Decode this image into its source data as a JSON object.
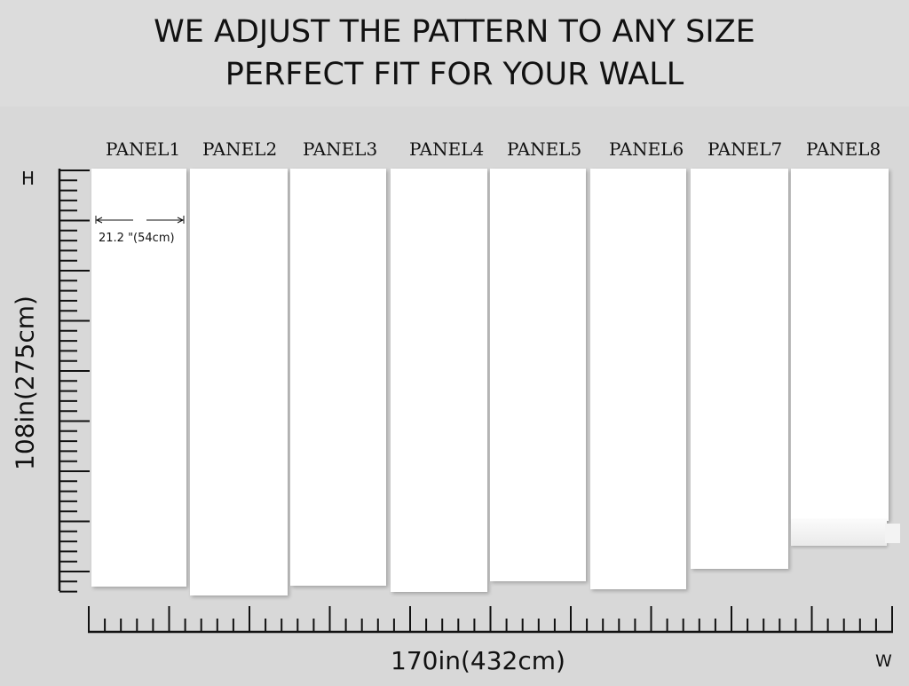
{
  "headline": {
    "line1": "WE ADJUST THE PATTERN TO ANY SIZE",
    "line2": "PERFECT FIT FOR YOUR WALL"
  },
  "panels": [
    "PANEL1",
    "PANEL2",
    "PANEL3",
    "PANEL4",
    "PANEL5",
    "PANEL6",
    "PANEL7",
    "PANEL8"
  ],
  "panel_width_label": "21.2  \"(54cm)",
  "height_label": "108in(275cm)",
  "width_label": "170in(432cm)",
  "h_marker": "H",
  "w_marker": "W",
  "colors": {
    "background": "#d8d8d8",
    "panel": "#ffffff",
    "ruler": "#111111"
  }
}
